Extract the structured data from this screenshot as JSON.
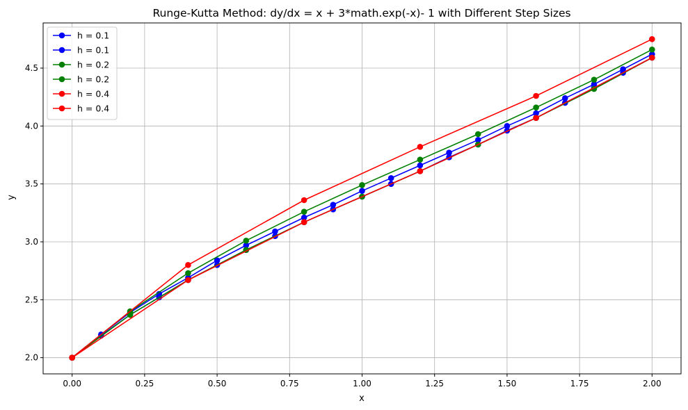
{
  "chart_data": {
    "type": "line",
    "title": "Runge-Kutta Method: dy/dx = x + 3*math.exp(-x)- 1 with Different Step Sizes",
    "xlabel": "x",
    "ylabel": "y",
    "xlim": [
      -0.1,
      2.1
    ],
    "ylim": [
      1.86,
      4.89
    ],
    "xticks": [
      "0.00",
      "0.25",
      "0.50",
      "0.75",
      "1.00",
      "1.25",
      "1.50",
      "1.75",
      "2.00"
    ],
    "yticks": [
      "2.0",
      "2.5",
      "3.0",
      "3.5",
      "4.0",
      "4.5"
    ],
    "grid": true,
    "legend_position": "top-left",
    "series": [
      {
        "name": "h = 0.1",
        "color": "#0000ff",
        "x": [
          0,
          0.1,
          0.2,
          0.3,
          0.4,
          0.5,
          0.6,
          0.7,
          0.8,
          0.9,
          1.0,
          1.1,
          1.2,
          1.3,
          1.4,
          1.5,
          1.6,
          1.7,
          1.8,
          1.9,
          2.0
        ],
        "y": [
          2.0,
          2.2,
          2.39,
          2.55,
          2.69,
          2.84,
          2.97,
          3.09,
          3.21,
          3.32,
          3.44,
          3.55,
          3.66,
          3.77,
          3.88,
          4.0,
          4.11,
          4.24,
          4.36,
          4.49,
          4.62
        ]
      },
      {
        "name": "h = 0.1",
        "color": "#0000ff",
        "x": [
          0,
          0.1,
          0.2,
          0.3,
          0.4,
          0.5,
          0.6,
          0.7,
          0.8,
          0.9,
          1.0,
          1.1,
          1.2,
          1.3,
          1.4,
          1.5,
          1.6,
          1.7,
          1.8,
          1.9,
          2.0
        ],
        "y": [
          2.0,
          2.19,
          2.37,
          2.52,
          2.67,
          2.8,
          2.93,
          3.05,
          3.17,
          3.28,
          3.39,
          3.5,
          3.61,
          3.73,
          3.84,
          3.96,
          4.07,
          4.2,
          4.33,
          4.46,
          4.59
        ]
      },
      {
        "name": "h = 0.2",
        "color": "#008000",
        "x": [
          0,
          0.2,
          0.4,
          0.6,
          0.8,
          1.0,
          1.2,
          1.4,
          1.6,
          1.8,
          2.0
        ],
        "y": [
          2.0,
          2.4,
          2.73,
          3.01,
          3.26,
          3.49,
          3.71,
          3.93,
          4.16,
          4.4,
          4.66
        ]
      },
      {
        "name": "h = 0.2",
        "color": "#008000",
        "x": [
          0,
          0.2,
          0.4,
          0.6,
          0.8,
          1.0,
          1.2,
          1.4,
          1.6,
          1.8,
          2.0
        ],
        "y": [
          2.0,
          2.37,
          2.67,
          2.93,
          3.17,
          3.39,
          3.61,
          3.84,
          4.07,
          4.32,
          4.59
        ]
      },
      {
        "name": "h = 0.4",
        "color": "#ff0000",
        "x": [
          0,
          0.4,
          0.8,
          1.2,
          1.6,
          2.0
        ],
        "y": [
          2.0,
          2.8,
          3.36,
          3.82,
          4.26,
          4.75
        ]
      },
      {
        "name": "h = 0.4",
        "color": "#ff0000",
        "x": [
          0,
          0.4,
          0.8,
          1.2,
          1.6,
          2.0
        ],
        "y": [
          2.0,
          2.67,
          3.17,
          3.61,
          4.07,
          4.59
        ]
      }
    ]
  }
}
